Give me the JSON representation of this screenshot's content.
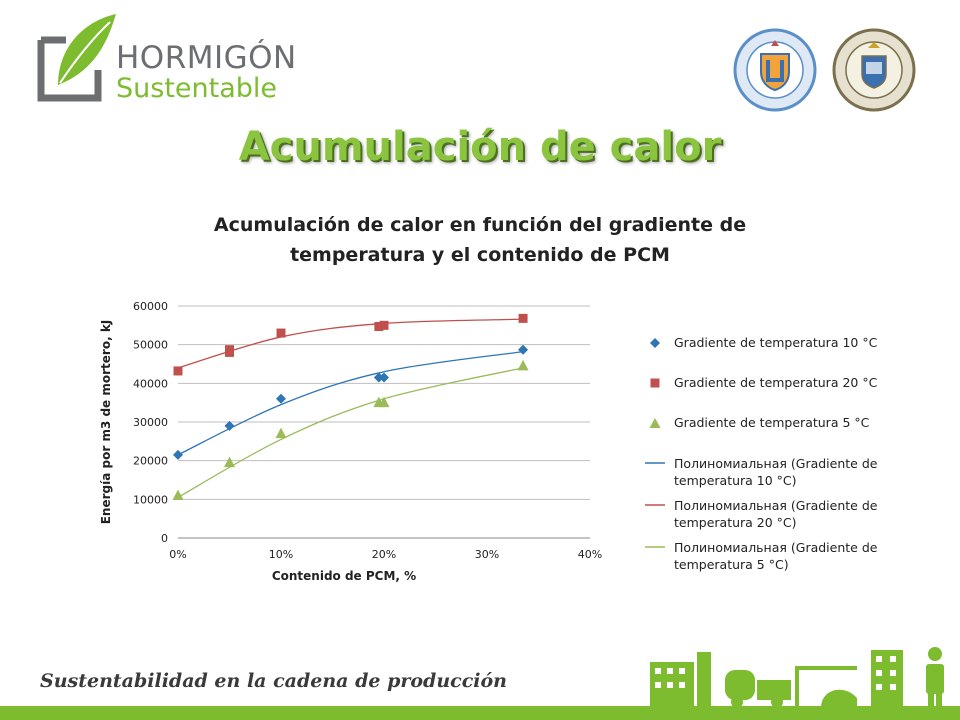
{
  "header": {
    "logo_text_1": "HORMIGÓN",
    "logo_text_2": "Sustentable",
    "seal1_icon": "university-seal-icon",
    "seal2_icon": "university-seal-icon"
  },
  "slide": {
    "title": "Acumulación de calor",
    "footer": "Sustentabilidad en la cadena de producción"
  },
  "colors": {
    "green": "#7dbb2f",
    "blue": "#2e75b6",
    "red": "#c0504d",
    "lightgreen": "#9bbb59"
  },
  "chart_data": {
    "type": "scatter",
    "title": "Acumulación de calor en función del gradiente de temperatura y el contenido de PCM",
    "title_lines": [
      "Acumulación de calor en función del gradiente de",
      "temperatura y el contenido de PCM"
    ],
    "xlabel": "Contenido de PCM, %",
    "ylabel": "Energía por m3 de mortero, kJ",
    "xlim": [
      0,
      0.4
    ],
    "ylim": [
      0,
      60000
    ],
    "x_ticks": [
      0,
      0.1,
      0.2,
      0.3,
      0.4
    ],
    "x_tick_labels": [
      "0%",
      "10%",
      "20%",
      "30%",
      "40%"
    ],
    "y_ticks": [
      0,
      10000,
      20000,
      30000,
      40000,
      50000,
      60000
    ],
    "y_tick_labels": [
      "0",
      "10000",
      "20000",
      "30000",
      "40000",
      "50000",
      "60000"
    ],
    "grid": "horizontal",
    "legend_position": "right",
    "series": [
      {
        "name": "Gradiente de temperatura 10 °C",
        "marker": "diamond",
        "color": "#2e75b6",
        "x": [
          0,
          0.05,
          0.1,
          0.195,
          0.2,
          0.335
        ],
        "y": [
          21500,
          29000,
          36000,
          41500,
          41500,
          48700
        ]
      },
      {
        "name": "Gradiente de temperatura 20 °C",
        "marker": "square",
        "color": "#c0504d",
        "x": [
          0,
          0.05,
          0.05,
          0.1,
          0.195,
          0.2,
          0.335
        ],
        "y": [
          43200,
          48000,
          48700,
          53000,
          54700,
          55000,
          56800
        ]
      },
      {
        "name": "Gradiente de temperatura 5 °C",
        "marker": "triangle",
        "color": "#9bbb59",
        "x": [
          0,
          0.05,
          0.1,
          0.195,
          0.2,
          0.335
        ],
        "y": [
          11000,
          19500,
          27000,
          35000,
          35000,
          44500
        ]
      }
    ],
    "trendlines": [
      {
        "name": "Полиномиальная (Gradiente de temperatura 10 °C)",
        "color": "#2e75b6",
        "x": [
          0,
          0.1,
          0.2,
          0.335
        ],
        "y": [
          21500,
          34500,
          43000,
          48200
        ]
      },
      {
        "name": "Полиномиальная (Gradiente de temperatura 20 °C)",
        "color": "#c0504d",
        "x": [
          0,
          0.1,
          0.2,
          0.335
        ],
        "y": [
          44000,
          52000,
          55500,
          56600
        ]
      },
      {
        "name": "Полиномиальная (Gradiente de temperatura 5 °C)",
        "color": "#9bbb59",
        "x": [
          0,
          0.1,
          0.2,
          0.335
        ],
        "y": [
          10500,
          25500,
          36000,
          44000
        ]
      }
    ]
  }
}
